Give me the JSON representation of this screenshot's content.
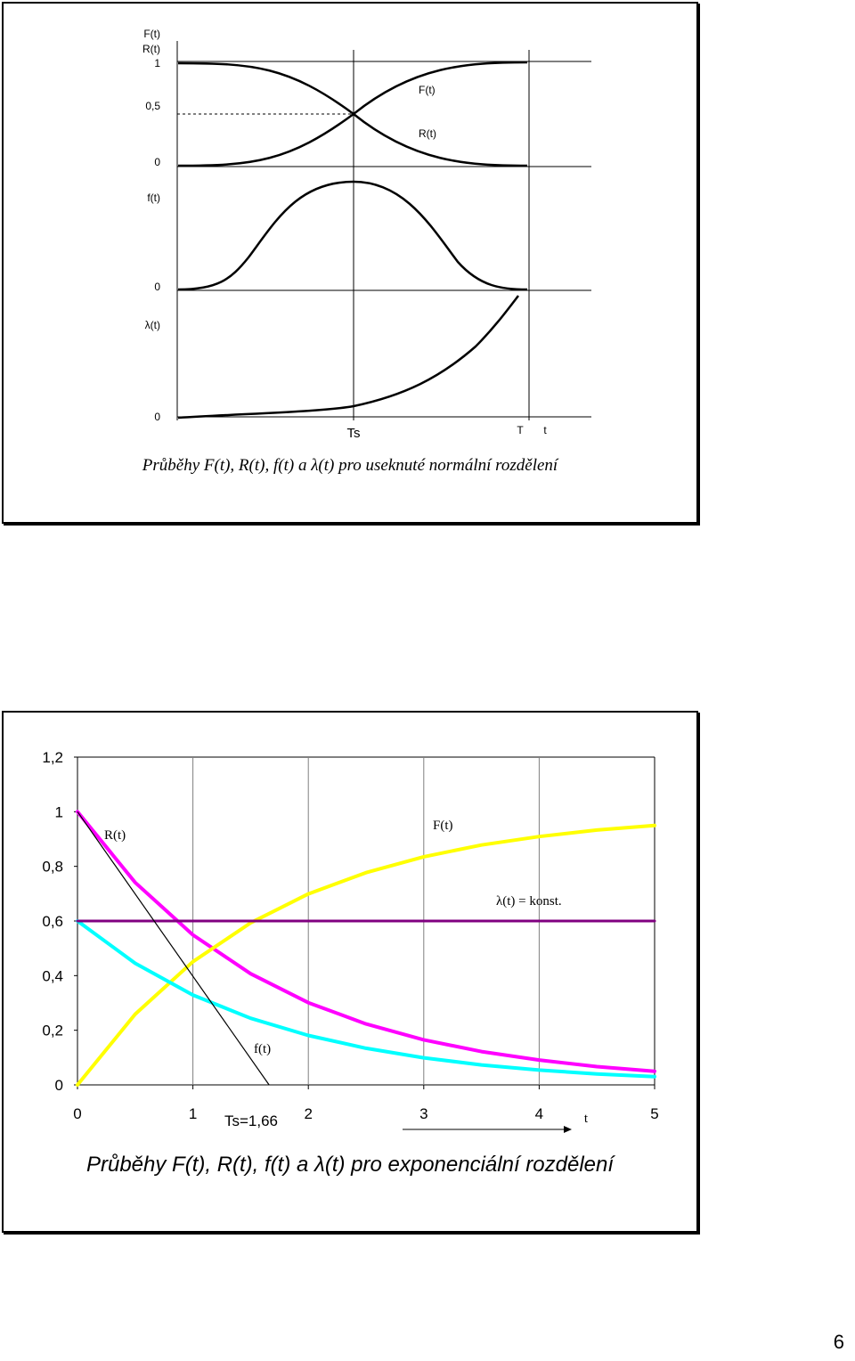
{
  "figure_normal": {
    "caption": "Průběhy F(t), R(t), f(t) a λ(t) pro useknuté normální rozdělení",
    "y_labels": {
      "F_axis": "F(t)",
      "R_axis": "R(t)",
      "one": "1",
      "half": "0,5",
      "zero_top": "0",
      "f_axis": "f(t)",
      "zero_mid": "0",
      "lambda_axis": "λ(t)",
      "zero_bottom": "0"
    },
    "curve_labels": {
      "F": "F(t)",
      "R": "R(t)"
    },
    "x_labels": {
      "Ts": "Ts",
      "T": "T",
      "t": "t"
    }
  },
  "chart_data": {
    "type": "line",
    "x": [
      0,
      0.5,
      1,
      1.5,
      2,
      2.5,
      3,
      3.5,
      4,
      4.5,
      5
    ],
    "series": [
      {
        "name": "R(t)",
        "color": "#ff00ff",
        "values": [
          1.0,
          0.741,
          0.549,
          0.407,
          0.301,
          0.223,
          0.165,
          0.122,
          0.091,
          0.067,
          0.05
        ]
      },
      {
        "name": "F(t)",
        "color": "#ffff00",
        "values": [
          0.0,
          0.259,
          0.451,
          0.593,
          0.699,
          0.777,
          0.835,
          0.878,
          0.909,
          0.933,
          0.95
        ]
      },
      {
        "name": "f(t)",
        "color": "#00ffff",
        "values": [
          0.6,
          0.445,
          0.329,
          0.244,
          0.181,
          0.134,
          0.099,
          0.073,
          0.054,
          0.04,
          0.03
        ]
      },
      {
        "name": "λ(t) = konst.",
        "color": "#800080",
        "values": [
          0.6,
          0.6,
          0.6,
          0.6,
          0.6,
          0.6,
          0.6,
          0.6,
          0.6,
          0.6,
          0.6
        ]
      }
    ],
    "tangent": {
      "from": [
        0,
        1.0
      ],
      "to": [
        1.66,
        0
      ]
    },
    "xlim": [
      0,
      5
    ],
    "ylim": [
      0,
      1.2
    ],
    "xticks": [
      "0",
      "1",
      "2",
      "3",
      "4",
      "5"
    ],
    "yticks": [
      "0",
      "0,2",
      "0,4",
      "0,6",
      "0,8",
      "1",
      "1,2"
    ],
    "ts_label": "Ts=1,66",
    "t_label": "t",
    "curve_labels": {
      "R": "R(t)",
      "F": "F(t)",
      "f": "f(t)",
      "lambda": "λ(t) = konst."
    },
    "grid": "vertical",
    "title": "Průběhy F(t), R(t), f(t) a λ(t) pro exponenciální rozdělení"
  },
  "page_number": "6"
}
